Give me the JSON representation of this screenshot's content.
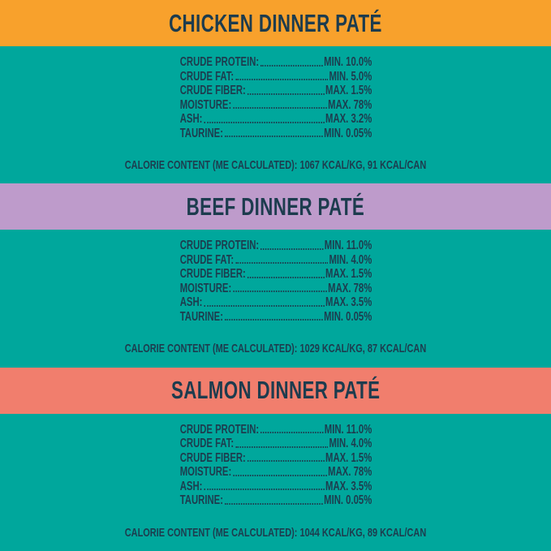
{
  "colors": {
    "teal_background": "#00A79C",
    "chicken_header": "#F8A12C",
    "beef_header": "#BE9BCB",
    "salmon_header": "#F17E6D",
    "text_navy": "#1D3C4E"
  },
  "sections": [
    {
      "id": "chicken",
      "title": "CHICKEN DINNER PATÉ",
      "header_color": "#F8A12C",
      "rows": [
        {
          "label": "CRUDE PROTEIN:",
          "value": "MIN. 10.0%"
        },
        {
          "label": "CRUDE FAT:",
          "value": "MIN. 5.0%"
        },
        {
          "label": "CRUDE FIBER:",
          "value": "MAX. 1.5%"
        },
        {
          "label": "MOISTURE:",
          "value": "MAX. 78%"
        },
        {
          "label": "ASH:",
          "value": "MAX. 3.2%"
        },
        {
          "label": "TAURINE:",
          "value": "MIN. 0.05%"
        }
      ],
      "calorie": "CALORIE CONTENT (ME CALCULATED): 1067 KCAL/KG, 91 KCAL/CAN"
    },
    {
      "id": "beef",
      "title": "BEEF DINNER PATÉ",
      "header_color": "#BE9BCB",
      "rows": [
        {
          "label": "CRUDE PROTEIN:",
          "value": "MIN. 11.0%"
        },
        {
          "label": "CRUDE FAT:",
          "value": "MIN. 4.0%"
        },
        {
          "label": "CRUDE FIBER:",
          "value": "MAX. 1.5%"
        },
        {
          "label": "MOISTURE:",
          "value": "MAX. 78%"
        },
        {
          "label": "ASH:",
          "value": "MAX. 3.5%"
        },
        {
          "label": "TAURINE:",
          "value": "MIN. 0.05%"
        }
      ],
      "calorie": "CALORIE CONTENT (ME CALCULATED): 1029 KCAL/KG, 87 KCAL/CAN"
    },
    {
      "id": "salmon",
      "title": "SALMON DINNER PATÉ",
      "header_color": "#F17E6D",
      "rows": [
        {
          "label": "CRUDE PROTEIN:",
          "value": "MIN. 11.0%"
        },
        {
          "label": "CRUDE FAT:",
          "value": "MIN. 4.0%"
        },
        {
          "label": "CRUDE FIBER:",
          "value": "MAX. 1.5%"
        },
        {
          "label": "MOISTURE:",
          "value": "MAX. 78%"
        },
        {
          "label": "ASH:",
          "value": "MAX. 3.5%"
        },
        {
          "label": "TAURINE:",
          "value": "MIN. 0.05%"
        }
      ],
      "calorie": "CALORIE CONTENT (ME CALCULATED): 1044 KCAL/KG, 89 KCAL/CAN"
    }
  ]
}
